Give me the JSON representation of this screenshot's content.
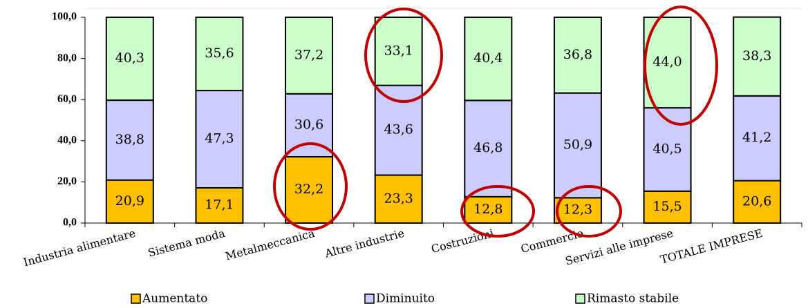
{
  "chart_data": {
    "type": "stacked_bar",
    "categories": [
      "Industria alimentare",
      "Sistema moda",
      "Metalmeccanica",
      "Altre industrie",
      "Costruzioni",
      "Commercio",
      "Servizi alle imprese",
      "TOTALE IMPRESE"
    ],
    "series": [
      {
        "name": "Aumentato",
        "color": "#ffc000",
        "values": [
          20.9,
          17.1,
          32.2,
          23.3,
          12.8,
          12.3,
          15.5,
          20.6
        ],
        "value_labels": [
          "20,9",
          "17,1",
          "32,2",
          "23,3",
          "12,8",
          "12,3",
          "15,5",
          "20,6"
        ]
      },
      {
        "name": "Diminuito",
        "color": "#ccccff",
        "values": [
          38.8,
          47.3,
          30.6,
          43.6,
          46.8,
          50.9,
          40.5,
          41.2
        ],
        "value_labels": [
          "38,8",
          "47,3",
          "30,6",
          "43,6",
          "46,8",
          "50,9",
          "40,5",
          "41,2"
        ]
      },
      {
        "name": "Rimasto stabile",
        "color": "#ccffcc",
        "values": [
          40.3,
          35.6,
          37.2,
          33.1,
          40.4,
          36.8,
          44.0,
          38.3
        ],
        "value_labels": [
          "40,3",
          "35,6",
          "37,2",
          "33,1",
          "40,4",
          "36,8",
          "44,0",
          "38,3"
        ]
      }
    ],
    "ylim": [
      0,
      100
    ],
    "yticks": [
      {
        "value": 0,
        "label": "0,0"
      },
      {
        "value": 20,
        "label": "20,0"
      },
      {
        "value": 40,
        "label": "40,0"
      },
      {
        "value": 60,
        "label": "60,0"
      },
      {
        "value": 80,
        "label": "80,0"
      },
      {
        "value": 100,
        "label": "100,0"
      }
    ],
    "grid": false,
    "legend": "bottom"
  }
}
